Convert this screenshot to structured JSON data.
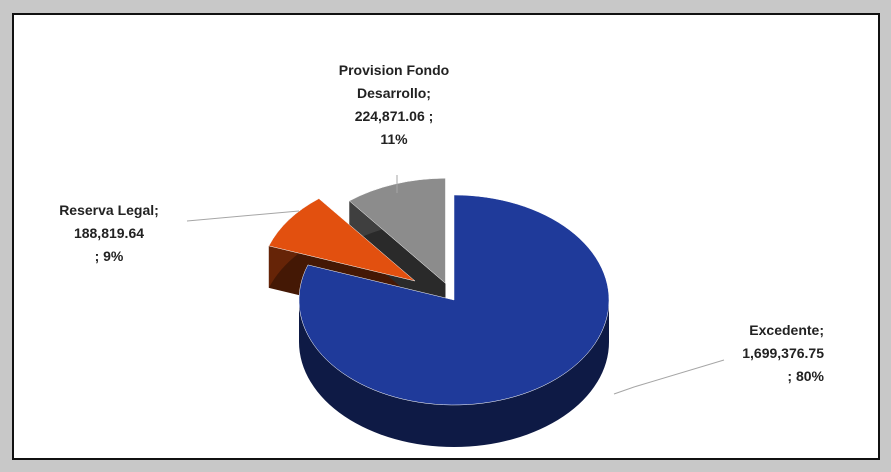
{
  "chart_data": {
    "type": "pie",
    "title": "",
    "slices": [
      {
        "name": "Excedente",
        "value": 1699376.75,
        "percent": 80,
        "color": "#1f3a9a",
        "label_lines": [
          "Excedente;",
          "1,699,376.75",
          "; 80%"
        ]
      },
      {
        "name": "Reserva Legal",
        "value": 188819.64,
        "percent": 9,
        "color": "#e2500f",
        "label_lines": [
          "Reserva Legal;",
          "188,819.64",
          "; 9%"
        ]
      },
      {
        "name": "Provision Fondo Desarrollo",
        "value": 224871.06,
        "percent": 11,
        "color": "#8c8c8c",
        "label_lines": [
          "Provision Fondo",
          "Desarrollo;",
          "224,871.06 ;",
          "11%"
        ]
      }
    ],
    "style": "3d-exploded-pie",
    "legend": "none"
  }
}
